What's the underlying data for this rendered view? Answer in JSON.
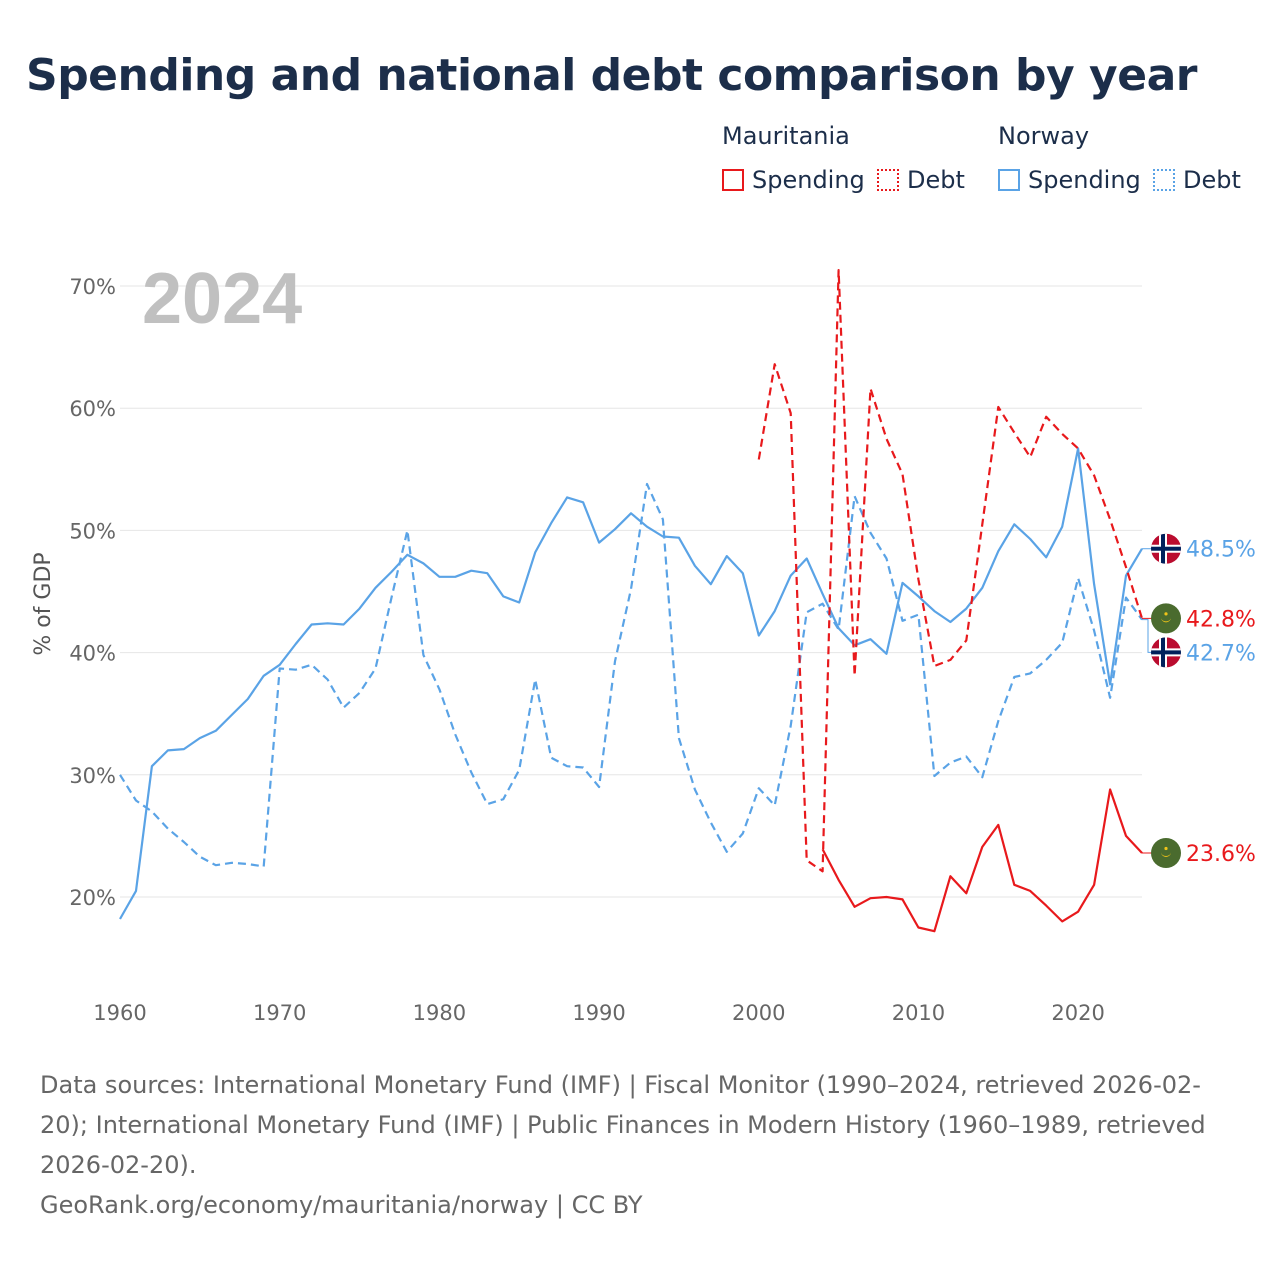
{
  "title": "Spending and national debt comparison by year",
  "legend": {
    "groups": [
      {
        "name": "Mauritania",
        "items": [
          {
            "label": "Spending",
            "style": "solid",
            "color": "#e8191c"
          },
          {
            "label": "Debt",
            "style": "dotted",
            "color": "#e8191c"
          }
        ]
      },
      {
        "name": "Norway",
        "items": [
          {
            "label": "Spending",
            "style": "solid",
            "color": "#5aa3e6"
          },
          {
            "label": "Debt",
            "style": "dotted",
            "color": "#5aa3e6"
          }
        ]
      }
    ]
  },
  "chart_data": {
    "type": "line",
    "year_label": "2024",
    "ylabel": "% of GDP",
    "xlim": [
      1960,
      2024
    ],
    "ylim": [
      15,
      72
    ],
    "x_ticks": [
      1960,
      1970,
      1980,
      1990,
      2000,
      2010,
      2020
    ],
    "y_ticks": [
      20,
      30,
      40,
      50,
      60,
      70
    ],
    "y_tick_labels": [
      "20%",
      "30%",
      "40%",
      "50%",
      "60%",
      "70%"
    ],
    "colors": {
      "mauritania": "#e8191c",
      "norway": "#5aa3e6"
    },
    "series": [
      {
        "name": "Norway Spending",
        "country": "norway",
        "dash": "solid",
        "x": [
          1960,
          1961,
          1962,
          1963,
          1964,
          1965,
          1966,
          1967,
          1968,
          1969,
          1970,
          1971,
          1972,
          1973,
          1974,
          1975,
          1976,
          1977,
          1978,
          1979,
          1980,
          1981,
          1982,
          1983,
          1984,
          1985,
          1986,
          1987,
          1988,
          1989,
          1990,
          1991,
          1992,
          1993,
          1994,
          1995,
          1996,
          1997,
          1998,
          1999,
          2000,
          2001,
          2002,
          2003,
          2004,
          2005,
          2006,
          2007,
          2008,
          2009,
          2010,
          2011,
          2012,
          2013,
          2014,
          2015,
          2016,
          2017,
          2018,
          2019,
          2020,
          2021,
          2022,
          2023,
          2024
        ],
        "values": [
          18.2,
          20.5,
          30.7,
          32.0,
          32.1,
          33.0,
          33.6,
          34.9,
          36.2,
          38.1,
          39.0,
          40.7,
          42.3,
          42.4,
          42.3,
          43.6,
          45.3,
          46.6,
          48.0,
          47.3,
          46.2,
          46.2,
          46.7,
          46.5,
          44.6,
          44.1,
          48.2,
          50.6,
          52.7,
          52.3,
          49.0,
          50.1,
          51.4,
          50.3,
          49.5,
          49.4,
          47.1,
          45.6,
          47.9,
          46.5,
          41.4,
          43.4,
          46.3,
          47.7,
          44.8,
          42.0,
          40.6,
          41.1,
          39.9,
          45.7,
          44.6,
          43.4,
          42.5,
          43.6,
          45.3,
          48.3,
          50.5,
          49.3,
          47.8,
          50.3,
          56.7,
          45.6,
          37.4,
          46.3,
          48.5
        ],
        "end_label": "48.5%"
      },
      {
        "name": "Norway Debt",
        "country": "norway",
        "dash": "dashed",
        "x": [
          1960,
          1961,
          1962,
          1963,
          1964,
          1965,
          1966,
          1967,
          1968,
          1969,
          1970,
          1971,
          1972,
          1973,
          1974,
          1975,
          1976,
          1977,
          1978,
          1979,
          1980,
          1981,
          1982,
          1983,
          1984,
          1985,
          1986,
          1987,
          1988,
          1989,
          1990,
          1991,
          1992,
          1993,
          1994,
          1995,
          1996,
          1997,
          1998,
          1999,
          2000,
          2001,
          2002,
          2003,
          2004,
          2005,
          2006,
          2007,
          2008,
          2009,
          2010,
          2011,
          2012,
          2013,
          2014,
          2015,
          2016,
          2017,
          2018,
          2019,
          2020,
          2021,
          2022,
          2023,
          2024
        ],
        "values": [
          30.0,
          27.9,
          27.0,
          25.6,
          24.5,
          23.3,
          22.6,
          22.8,
          22.7,
          22.5,
          38.7,
          38.6,
          39.0,
          37.8,
          35.5,
          36.7,
          38.7,
          44.5,
          50.0,
          39.8,
          37.0,
          33.3,
          30.2,
          27.6,
          28.0,
          30.4,
          37.8,
          31.4,
          30.7,
          30.6,
          29.0,
          39.3,
          45.2,
          53.8,
          50.9,
          33.0,
          28.8,
          26.1,
          23.7,
          25.2,
          28.9,
          27.5,
          34.0,
          43.3,
          44.0,
          41.9,
          52.8,
          49.8,
          47.7,
          42.6,
          43.1,
          29.9,
          31.0,
          31.5,
          29.8,
          34.4,
          38.0,
          38.3,
          39.4,
          40.8,
          46.1,
          41.8,
          36.3,
          44.5,
          42.7
        ],
        "end_label": "42.7%"
      },
      {
        "name": "Mauritania Spending",
        "country": "mauritania",
        "dash": "solid",
        "x": [
          2004,
          2005,
          2006,
          2007,
          2008,
          2009,
          2010,
          2011,
          2012,
          2013,
          2014,
          2015,
          2016,
          2017,
          2018,
          2019,
          2020,
          2021,
          2022,
          2023,
          2024
        ],
        "values": [
          23.9,
          21.4,
          19.2,
          19.9,
          20.0,
          19.8,
          17.5,
          17.2,
          21.7,
          20.3,
          24.1,
          25.9,
          21.0,
          20.5,
          19.3,
          18.0,
          18.8,
          21.0,
          28.8,
          25.0,
          23.6
        ],
        "end_label": "23.6%"
      },
      {
        "name": "Mauritania Debt",
        "country": "mauritania",
        "dash": "dashed",
        "x": [
          2000,
          2001,
          2002,
          2003,
          2004,
          2005,
          2006,
          2007,
          2008,
          2009,
          2010,
          2011,
          2012,
          2013,
          2014,
          2015,
          2016,
          2017,
          2018,
          2019,
          2020,
          2021,
          2022,
          2023,
          2024
        ],
        "values": [
          55.8,
          63.6,
          59.6,
          23.0,
          22.1,
          71.3,
          38.1,
          61.6,
          57.5,
          54.6,
          46.0,
          38.9,
          39.4,
          41.0,
          50.5,
          60.1,
          58.0,
          56.0,
          59.3,
          57.9,
          56.7,
          54.5,
          50.9,
          47.0,
          42.8
        ],
        "end_label": "42.8%"
      }
    ]
  },
  "footer": {
    "sources": "Data sources: International Monetary Fund (IMF) | Fiscal Monitor (1990–2024, retrieved 2026-02-20); International Monetary Fund (IMF) | Public Finances in Modern History (1960–1989, retrieved 2026-02-20).",
    "credit": "GeoRank.org/economy/mauritania/norway | CC BY"
  }
}
